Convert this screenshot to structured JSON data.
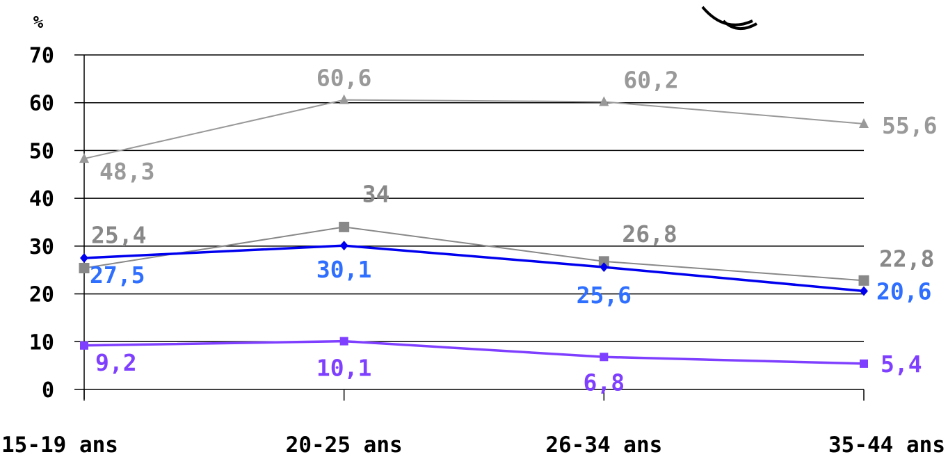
{
  "chart_data": {
    "type": "line",
    "ylabel": "%",
    "ylim": [
      0,
      70
    ],
    "yticks": [
      "0",
      "10",
      "20",
      "30",
      "40",
      "50",
      "60",
      "70"
    ],
    "categories": [
      "15-19 ans",
      "20-25 ans",
      "26-34 ans",
      "35-44 ans"
    ],
    "grid": true,
    "series": [
      {
        "color": "#999999",
        "marker": "triangle",
        "values": [
          48.3,
          60.6,
          60.2,
          55.6
        ],
        "labels": [
          "48,3",
          "60,6",
          "60,2",
          "55,6"
        ]
      },
      {
        "color": "#888888",
        "marker": "square",
        "values": [
          25.4,
          34,
          26.8,
          22.8
        ],
        "labels": [
          "25,4",
          "34",
          "26,8",
          "22,8"
        ]
      },
      {
        "color": "#0000ee",
        "label_color": "#2f6fff",
        "marker": "diamond",
        "values": [
          27.5,
          30.1,
          25.6,
          20.6
        ],
        "labels": [
          "27,5",
          "30,1",
          "25,6",
          "20,6"
        ]
      },
      {
        "color": "#7f3fff",
        "label_color": "#7f3fff",
        "marker": "square",
        "values": [
          9.2,
          10.1,
          6.8,
          5.4
        ],
        "labels": [
          "9,2",
          "10,1",
          "6,8",
          "5,4"
        ]
      }
    ]
  }
}
